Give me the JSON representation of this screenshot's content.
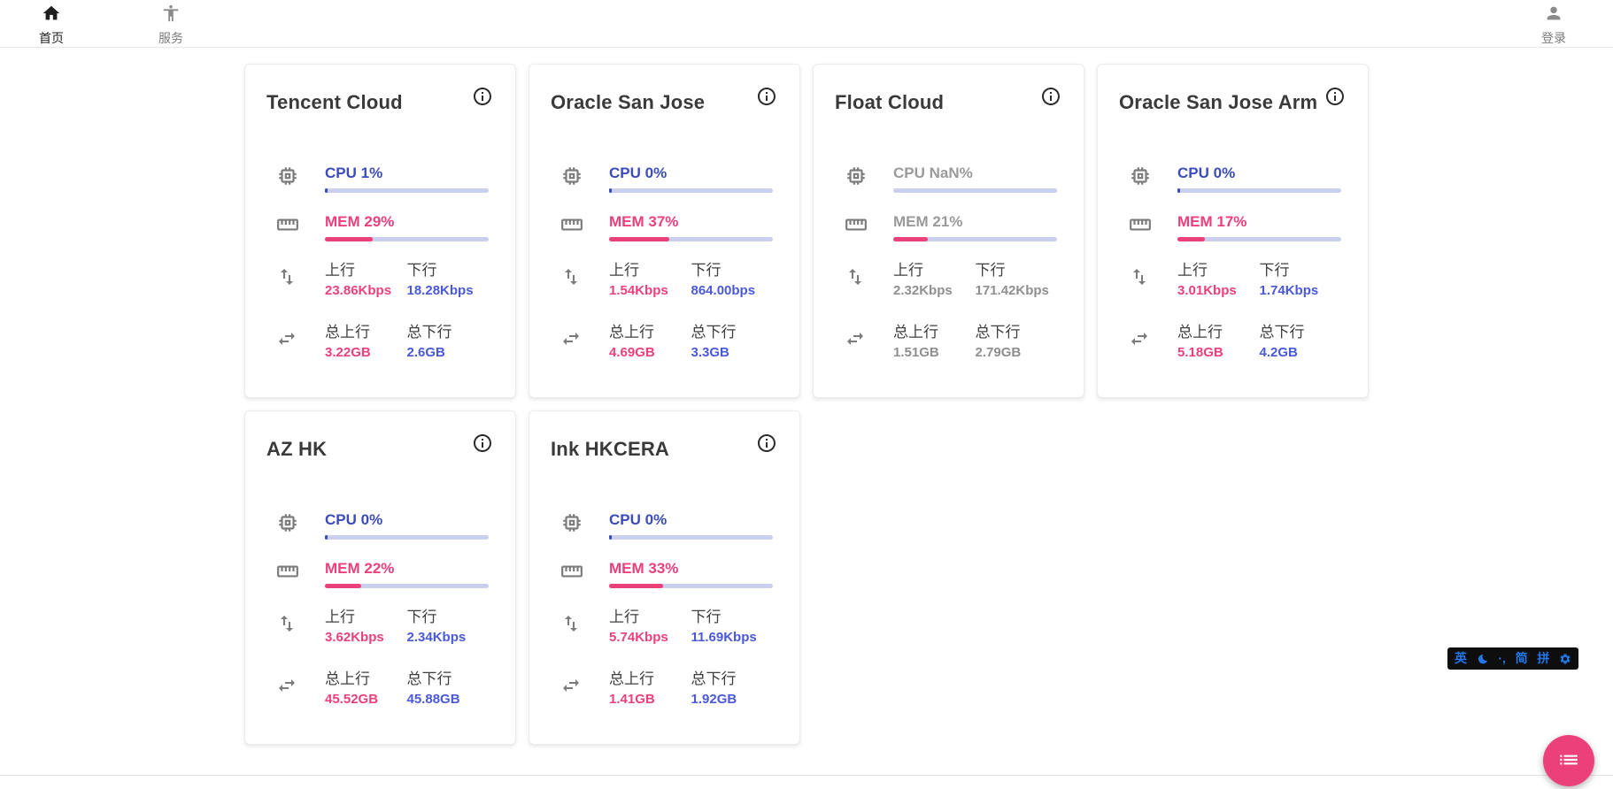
{
  "nav": {
    "home": {
      "label": "首页"
    },
    "services": {
      "label": "服务"
    },
    "login": {
      "label": "登录"
    }
  },
  "shared": {
    "up_label": "上行",
    "down_label": "下行",
    "total_up_label": "总上行",
    "total_down_label": "总下行"
  },
  "servers": [
    {
      "name": "Tencent Cloud",
      "cpu_label": "CPU 1%",
      "cpu_pct": 1,
      "mem_label": "MEM 29%",
      "mem_pct": 29,
      "up": "23.86Kbps",
      "down": "18.28Kbps",
      "total_up": "3.22GB",
      "total_down": "2.6GB",
      "online": true
    },
    {
      "name": "Oracle San Jose",
      "cpu_label": "CPU 0%",
      "cpu_pct": 0,
      "mem_label": "MEM 37%",
      "mem_pct": 37,
      "up": "1.54Kbps",
      "down": "864.00bps",
      "total_up": "4.69GB",
      "total_down": "3.3GB",
      "online": true
    },
    {
      "name": "Float Cloud",
      "cpu_label": "CPU NaN%",
      "cpu_pct": null,
      "mem_label": "MEM 21%",
      "mem_pct": 21,
      "up": "2.32Kbps",
      "down": "171.42Kbps",
      "total_up": "1.51GB",
      "total_down": "2.79GB",
      "online": false
    },
    {
      "name": "Oracle San Jose Arm",
      "cpu_label": "CPU 0%",
      "cpu_pct": 0,
      "mem_label": "MEM 17%",
      "mem_pct": 17,
      "up": "3.01Kbps",
      "down": "1.74Kbps",
      "total_up": "5.18GB",
      "total_down": "4.2GB",
      "online": true
    },
    {
      "name": "AZ HK",
      "cpu_label": "CPU 0%",
      "cpu_pct": 0,
      "mem_label": "MEM 22%",
      "mem_pct": 22,
      "up": "3.62Kbps",
      "down": "2.34Kbps",
      "total_up": "45.52GB",
      "total_down": "45.88GB",
      "online": true
    },
    {
      "name": "Ink HKCERA",
      "cpu_label": "CPU 0%",
      "cpu_pct": 0,
      "mem_label": "MEM 33%",
      "mem_pct": 33,
      "up": "5.74Kbps",
      "down": "11.69Kbps",
      "total_up": "1.41GB",
      "total_down": "1.92GB",
      "online": true
    }
  ],
  "colors": {
    "accent_blue_label": "#3c4cbc",
    "accent_blue_value": "#4a59d8",
    "accent_pink": "#ec407a",
    "bar_track": "#c9cfec",
    "offline_gray": "#8f8f8f",
    "ime_blue": "#2176e8",
    "ime_bg": "#0e0e0e"
  },
  "ime": {
    "en": "英",
    "punct": "·,",
    "simplified": "简",
    "pinyin": "拼"
  }
}
